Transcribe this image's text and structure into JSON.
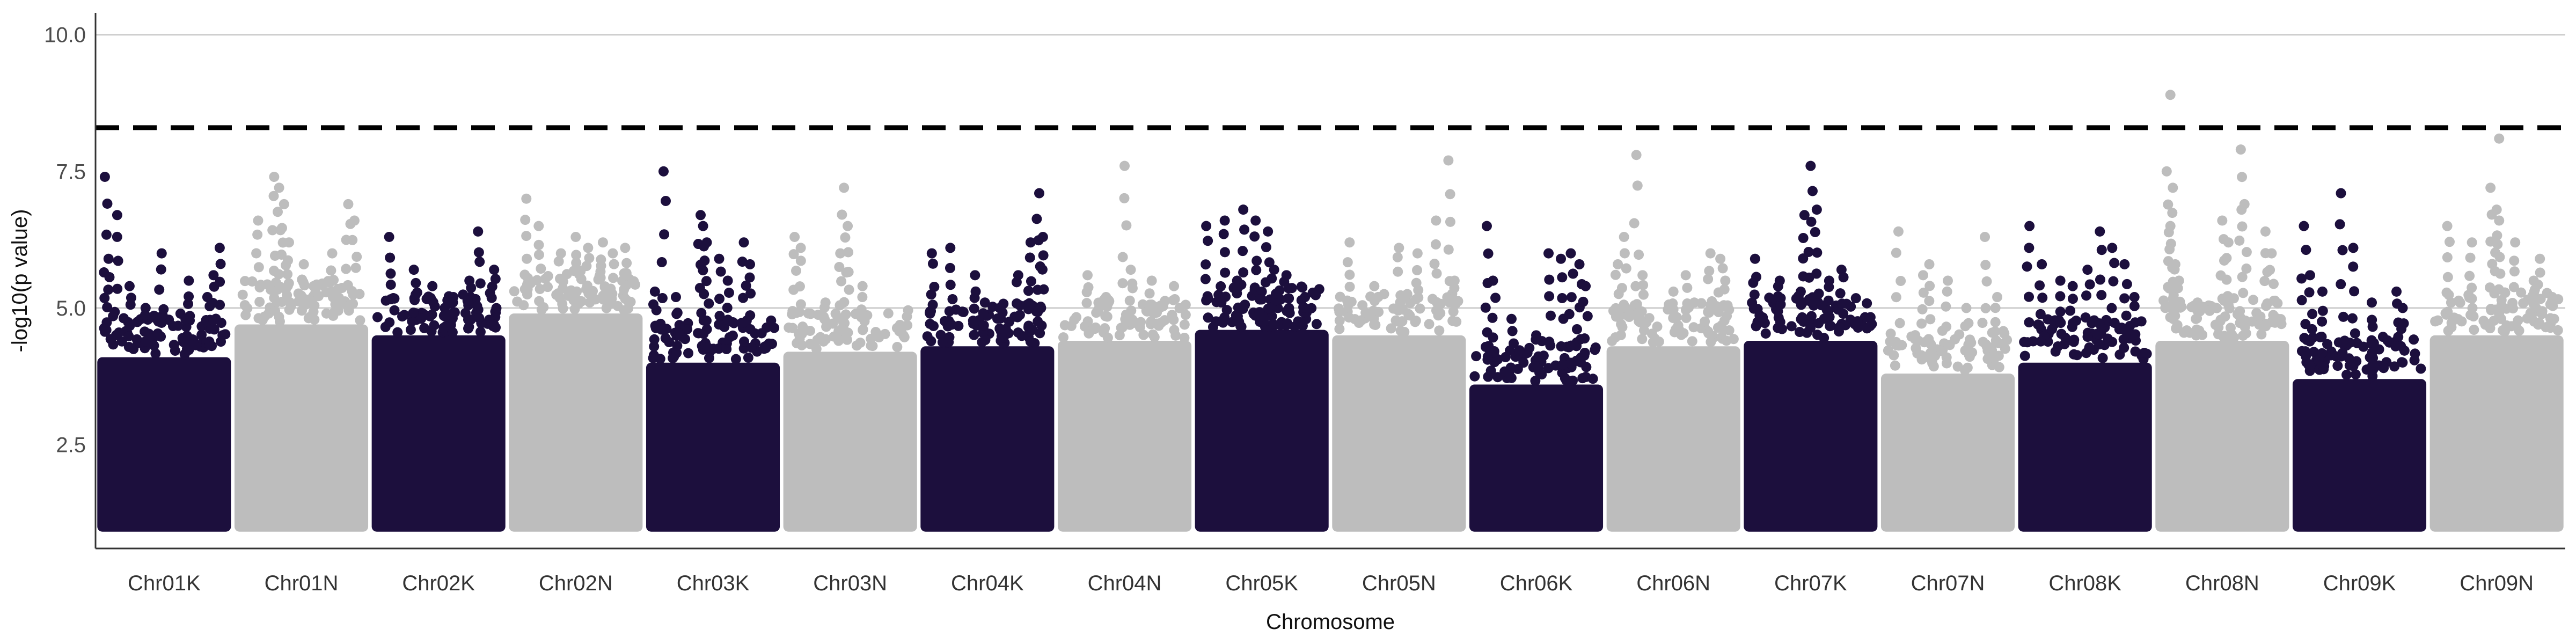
{
  "chart_data": {
    "type": "scatter",
    "xlabel": "Chromosome",
    "ylabel": "-log10(p value)",
    "yticks": [
      2.5,
      5.0,
      7.5,
      10.0
    ],
    "ytick_labels": [
      "2.5",
      "5.0",
      "7.5",
      "10.0"
    ],
    "ylim": [
      0.6,
      10.4
    ],
    "gridlines_y": [
      5.0,
      10.0
    ],
    "threshold": 8.3,
    "point_floor": 1.0,
    "colors": {
      "dark": "#1c0f3d",
      "light": "#bdbdbd",
      "threshold": "#000000",
      "grid": "#cccccc",
      "axis": "#333333"
    },
    "categories": [
      "Chr01K",
      "Chr01N",
      "Chr02K",
      "Chr02N",
      "Chr03K",
      "Chr03N",
      "Chr04K",
      "Chr04N",
      "Chr05K",
      "Chr05N",
      "Chr06K",
      "Chr06N",
      "Chr07K",
      "Chr07N",
      "Chr08K",
      "Chr08N",
      "Chr09K",
      "Chr09N"
    ],
    "dense_top": [
      4.1,
      4.7,
      4.5,
      4.9,
      4.0,
      4.2,
      4.3,
      4.4,
      4.6,
      4.5,
      3.6,
      4.3,
      4.4,
      3.8,
      4.0,
      4.4,
      3.7,
      4.5
    ],
    "peaks": [
      [
        [
          0.02,
          7.4
        ],
        [
          0.12,
          6.7
        ],
        [
          0.05,
          5.9
        ],
        [
          0.22,
          5.4
        ],
        [
          0.48,
          6.0
        ],
        [
          0.7,
          5.5
        ],
        [
          0.85,
          5.2
        ],
        [
          0.95,
          6.1
        ],
        [
          0.9,
          5.6
        ],
        [
          0.35,
          5.0
        ]
      ],
      [
        [
          0.15,
          6.6
        ],
        [
          0.28,
          7.4
        ],
        [
          0.32,
          7.2
        ],
        [
          0.36,
          6.9
        ],
        [
          0.4,
          6.2
        ],
        [
          0.52,
          5.8
        ],
        [
          0.75,
          6.0
        ],
        [
          0.88,
          6.9
        ],
        [
          0.93,
          6.6
        ],
        [
          0.6,
          5.4
        ]
      ],
      [
        [
          0.1,
          6.3
        ],
        [
          0.3,
          5.7
        ],
        [
          0.45,
          5.4
        ],
        [
          0.62,
          5.2
        ],
        [
          0.75,
          5.5
        ],
        [
          0.82,
          6.4
        ],
        [
          0.95,
          5.7
        ],
        [
          0.55,
          5.0
        ]
      ],
      [
        [
          0.1,
          7.0
        ],
        [
          0.2,
          6.5
        ],
        [
          0.38,
          6.0
        ],
        [
          0.5,
          6.3
        ],
        [
          0.6,
          6.1
        ],
        [
          0.72,
          6.2
        ],
        [
          0.8,
          6.0
        ],
        [
          0.9,
          6.1
        ]
      ],
      [
        [
          0.1,
          7.5
        ],
        [
          0.03,
          5.3
        ],
        [
          0.2,
          5.2
        ],
        [
          0.4,
          6.7
        ],
        [
          0.42,
          6.5
        ],
        [
          0.45,
          6.2
        ],
        [
          0.55,
          5.9
        ],
        [
          0.62,
          5.5
        ],
        [
          0.75,
          6.2
        ],
        [
          0.8,
          5.8
        ]
      ],
      [
        [
          0.05,
          6.3
        ],
        [
          0.1,
          6.1
        ],
        [
          0.45,
          7.2
        ],
        [
          0.48,
          6.5
        ],
        [
          0.42,
          6.0
        ],
        [
          0.6,
          5.4
        ],
        [
          0.3,
          5.1
        ]
      ],
      [
        [
          0.05,
          6.0
        ],
        [
          0.2,
          6.1
        ],
        [
          0.4,
          5.6
        ],
        [
          0.48,
          5.1
        ],
        [
          0.75,
          5.6
        ],
        [
          0.85,
          6.2
        ],
        [
          0.92,
          7.1
        ],
        [
          0.95,
          6.3
        ],
        [
          0.6,
          5.0
        ]
      ],
      [
        [
          0.2,
          5.6
        ],
        [
          0.5,
          7.6
        ],
        [
          0.55,
          5.7
        ],
        [
          0.72,
          5.5
        ],
        [
          0.9,
          5.4
        ],
        [
          0.35,
          5.2
        ]
      ],
      [
        [
          0.05,
          6.5
        ],
        [
          0.2,
          6.6
        ],
        [
          0.35,
          6.8
        ],
        [
          0.45,
          6.6
        ],
        [
          0.55,
          6.4
        ],
        [
          0.6,
          5.7
        ],
        [
          0.5,
          5.3
        ],
        [
          0.7,
          5.6
        ],
        [
          0.85,
          5.2
        ],
        [
          0.3,
          5.5
        ]
      ],
      [
        [
          0.1,
          6.2
        ],
        [
          0.3,
          5.4
        ],
        [
          0.5,
          6.1
        ],
        [
          0.65,
          6.0
        ],
        [
          0.8,
          6.6
        ],
        [
          0.9,
          7.7
        ],
        [
          0.95,
          5.5
        ]
      ],
      [
        [
          0.1,
          6.5
        ],
        [
          0.15,
          5.5
        ],
        [
          0.3,
          4.8
        ],
        [
          0.6,
          6.0
        ],
        [
          0.7,
          5.9
        ],
        [
          0.78,
          6.0
        ],
        [
          0.85,
          5.8
        ],
        [
          0.9,
          5.4
        ],
        [
          0.5,
          4.5
        ]
      ],
      [
        [
          0.05,
          5.8
        ],
        [
          0.1,
          6.3
        ],
        [
          0.2,
          7.8
        ],
        [
          0.25,
          5.6
        ],
        [
          0.5,
          5.3
        ],
        [
          0.6,
          5.6
        ],
        [
          0.8,
          6.0
        ],
        [
          0.88,
          5.9
        ],
        [
          0.92,
          5.5
        ]
      ],
      [
        [
          0.05,
          5.9
        ],
        [
          0.25,
          5.5
        ],
        [
          0.42,
          5.3
        ],
        [
          0.45,
          6.7
        ],
        [
          0.5,
          7.6
        ],
        [
          0.55,
          6.8
        ],
        [
          0.65,
          5.5
        ],
        [
          0.75,
          5.7
        ]
      ],
      [
        [
          0.1,
          6.4
        ],
        [
          0.3,
          5.6
        ],
        [
          0.35,
          5.8
        ],
        [
          0.5,
          5.5
        ],
        [
          0.65,
          5.0
        ],
        [
          0.8,
          6.3
        ],
        [
          0.9,
          5.2
        ]
      ],
      [
        [
          0.05,
          6.5
        ],
        [
          0.15,
          5.8
        ],
        [
          0.3,
          5.5
        ],
        [
          0.4,
          5.4
        ],
        [
          0.52,
          5.7
        ],
        [
          0.62,
          6.4
        ],
        [
          0.72,
          6.1
        ],
        [
          0.82,
          5.8
        ],
        [
          0.9,
          5.2
        ]
      ],
      [
        [
          0.05,
          7.5
        ],
        [
          0.1,
          7.2
        ],
        [
          0.08,
          6.5
        ],
        [
          0.12,
          5.8
        ],
        [
          0.15,
          5.5
        ],
        [
          0.3,
          5.1
        ],
        [
          0.5,
          6.6
        ],
        [
          0.55,
          6.2
        ],
        [
          0.65,
          7.9
        ],
        [
          0.68,
          6.9
        ],
        [
          0.85,
          6.4
        ],
        [
          0.9,
          6.0
        ]
      ],
      [
        [
          0.05,
          6.5
        ],
        [
          0.1,
          5.6
        ],
        [
          0.2,
          5.3
        ],
        [
          0.35,
          7.1
        ],
        [
          0.45,
          6.1
        ],
        [
          0.6,
          5.1
        ],
        [
          0.8,
          5.3
        ],
        [
          0.85,
          5.0
        ]
      ],
      [
        [
          0.1,
          6.5
        ],
        [
          0.3,
          6.2
        ],
        [
          0.45,
          7.2
        ],
        [
          0.5,
          6.8
        ],
        [
          0.52,
          6.6
        ],
        [
          0.65,
          6.2
        ],
        [
          0.8,
          5.5
        ],
        [
          0.85,
          5.9
        ],
        [
          0.95,
          5.2
        ]
      ]
    ],
    "outliers": [
      {
        "category": "Chr08N",
        "offset": 0.08,
        "y": 8.9
      },
      {
        "category": "Chr09N",
        "offset": 0.52,
        "y": 8.1
      }
    ]
  }
}
